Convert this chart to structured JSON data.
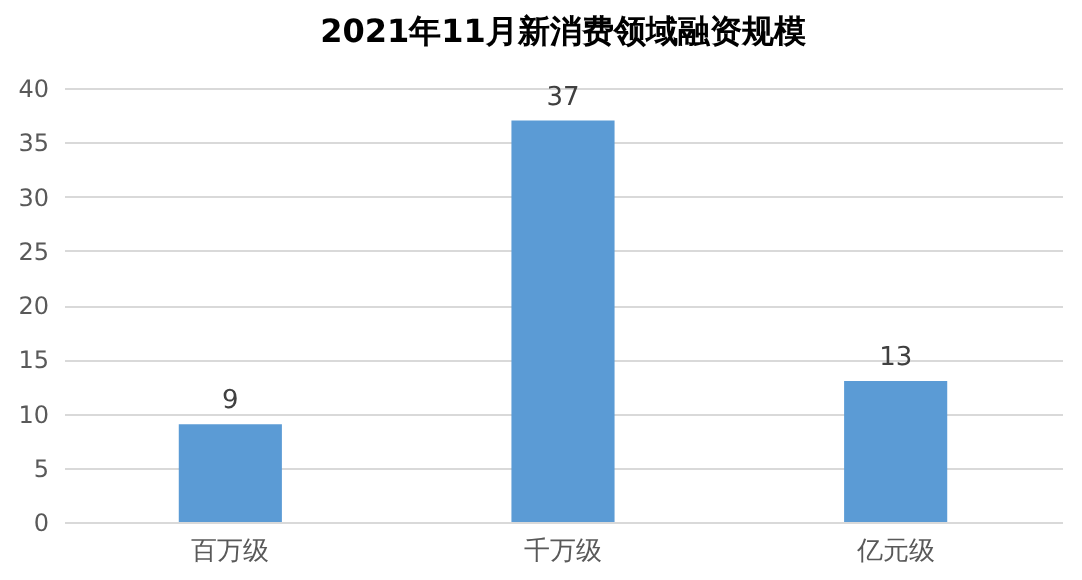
{
  "chart_data": {
    "type": "bar",
    "title": "2021年11月新消费领域融资规模",
    "categories": [
      "百万级",
      "千万级",
      "亿元级"
    ],
    "values": [
      9,
      37,
      13
    ],
    "color": "#5b9bd5",
    "ylim": [
      0,
      40
    ],
    "yticks": [
      0,
      5,
      10,
      15,
      20,
      25,
      30,
      35,
      40
    ],
    "grid": "y",
    "data_labels": true
  }
}
